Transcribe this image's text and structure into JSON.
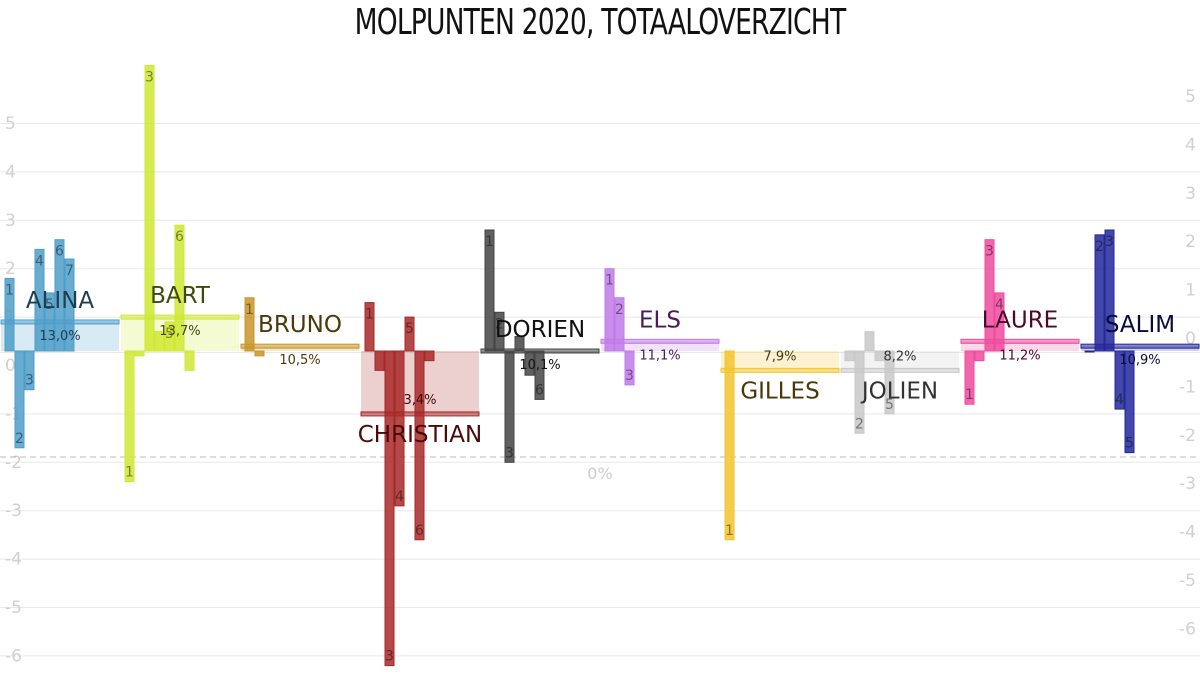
{
  "chart_data": {
    "type": "bar",
    "title": "MOLPUNTEN 2020, TOTAALOVERZICHT",
    "ylim": [
      -6.5,
      6
    ],
    "yticks_left": [
      -6,
      -5,
      -4,
      -3,
      -2,
      -1,
      0,
      1,
      2,
      3,
      4,
      5
    ],
    "yticks_right": [
      -6,
      -5,
      -4,
      -3,
      -2,
      -1,
      0,
      1,
      2,
      3,
      4,
      5
    ],
    "reference_line": -1.9,
    "reference_label": "0%",
    "grid": true,
    "players": [
      {
        "name": "ALINA",
        "percentage": "13,0%",
        "average": 0.6,
        "color": "#4d9ec8",
        "label_color": "#1d3d50",
        "episodes": [
          {
            "label": "1",
            "value": 1.5
          },
          {
            "label": "2",
            "value": -2.0
          },
          {
            "label": "3",
            "value": -0.8
          },
          {
            "label": "4",
            "value": 2.1
          },
          {
            "label": "5",
            "value": 1.2
          },
          {
            "label": "6",
            "value": 2.3
          },
          {
            "label": "7",
            "value": 1.9
          }
        ]
      },
      {
        "name": "BART",
        "percentage": "13,7%",
        "average": 0.7,
        "color": "#cfe832",
        "label_color": "#3f4a08",
        "episodes": [
          {
            "label": "1",
            "value": -2.7
          },
          {
            "label": "2",
            "value": -0.1
          },
          {
            "label": "3",
            "value": 5.9
          },
          {
            "label": "4",
            "value": 0.4
          },
          {
            "label": "5",
            "value": 0.6
          },
          {
            "label": "6",
            "value": 2.6
          },
          {
            "label": "7",
            "value": -0.4
          }
        ]
      },
      {
        "name": "BRUNO",
        "percentage": "10,5%",
        "average": 0.1,
        "color": "#c8952a",
        "label_color": "#4a3a08",
        "episodes": [
          {
            "label": "1",
            "value": 1.1
          },
          {
            "label": "2",
            "value": -0.1
          }
        ]
      },
      {
        "name": "CHRISTIAN",
        "percentage": "3,4%",
        "average": -1.3,
        "color": "#a82828",
        "label_color": "#4a0a0a",
        "episodes": [
          {
            "label": "1",
            "value": 1.0
          },
          {
            "label": "2",
            "value": -0.4
          },
          {
            "label": "3",
            "value": -6.5
          },
          {
            "label": "4",
            "value": -3.2
          },
          {
            "label": "5",
            "value": 0.7
          },
          {
            "label": "6",
            "value": -3.9
          },
          {
            "label": "7",
            "value": -0.2
          }
        ]
      },
      {
        "name": "DORIEN",
        "percentage": "10,1%",
        "average": 0.0,
        "color": "#444444",
        "label_color": "#111111",
        "episodes": [
          {
            "label": "1",
            "value": 2.5
          },
          {
            "label": "2",
            "value": 0.8
          },
          {
            "label": "3",
            "value": -2.3
          },
          {
            "label": "4",
            "value": 0.3
          },
          {
            "label": "5",
            "value": -0.5
          },
          {
            "label": "6",
            "value": -1.0
          }
        ]
      },
      {
        "name": "ELS",
        "percentage": "11,1%",
        "average": 0.2,
        "color": "#c07ae8",
        "label_color": "#4a1a5a",
        "episodes": [
          {
            "label": "1",
            "value": 1.7
          },
          {
            "label": "2",
            "value": 1.1
          },
          {
            "label": "3",
            "value": -0.7
          }
        ]
      },
      {
        "name": "GILLES",
        "percentage": "7,9%",
        "average": -0.4,
        "color": "#f2c42e",
        "label_color": "#4a3808",
        "episodes": [
          {
            "label": "1",
            "value": -3.9
          }
        ]
      },
      {
        "name": "JOLIEN",
        "percentage": "8,2%",
        "average": -0.4,
        "color": "#c8c8c8",
        "label_color": "#333333",
        "episodes": [
          {
            "label": "1",
            "value": -0.2
          },
          {
            "label": "2",
            "value": -1.7
          },
          {
            "label": "3",
            "value": 0.4
          },
          {
            "label": "4",
            "value": -0.2
          },
          {
            "label": "5",
            "value": -1.3
          }
        ]
      },
      {
        "name": "LAURE",
        "percentage": "11,2%",
        "average": 0.2,
        "color": "#ee4a9e",
        "label_color": "#4a0a2a",
        "episodes": [
          {
            "label": "1",
            "value": -1.1
          },
          {
            "label": "2",
            "value": -0.2
          },
          {
            "label": "3",
            "value": 2.3
          },
          {
            "label": "4",
            "value": 1.2
          }
        ]
      },
      {
        "name": "SALIM",
        "percentage": "10,9%",
        "average": 0.1,
        "color": "#22279a",
        "label_color": "#0a0a3a",
        "episodes": [
          {
            "label": "1",
            "value": 0.0
          },
          {
            "label": "2",
            "value": 2.4
          },
          {
            "label": "3",
            "value": 2.5
          },
          {
            "label": "4",
            "value": -1.2
          },
          {
            "label": "5",
            "value": -2.1
          }
        ]
      }
    ]
  }
}
